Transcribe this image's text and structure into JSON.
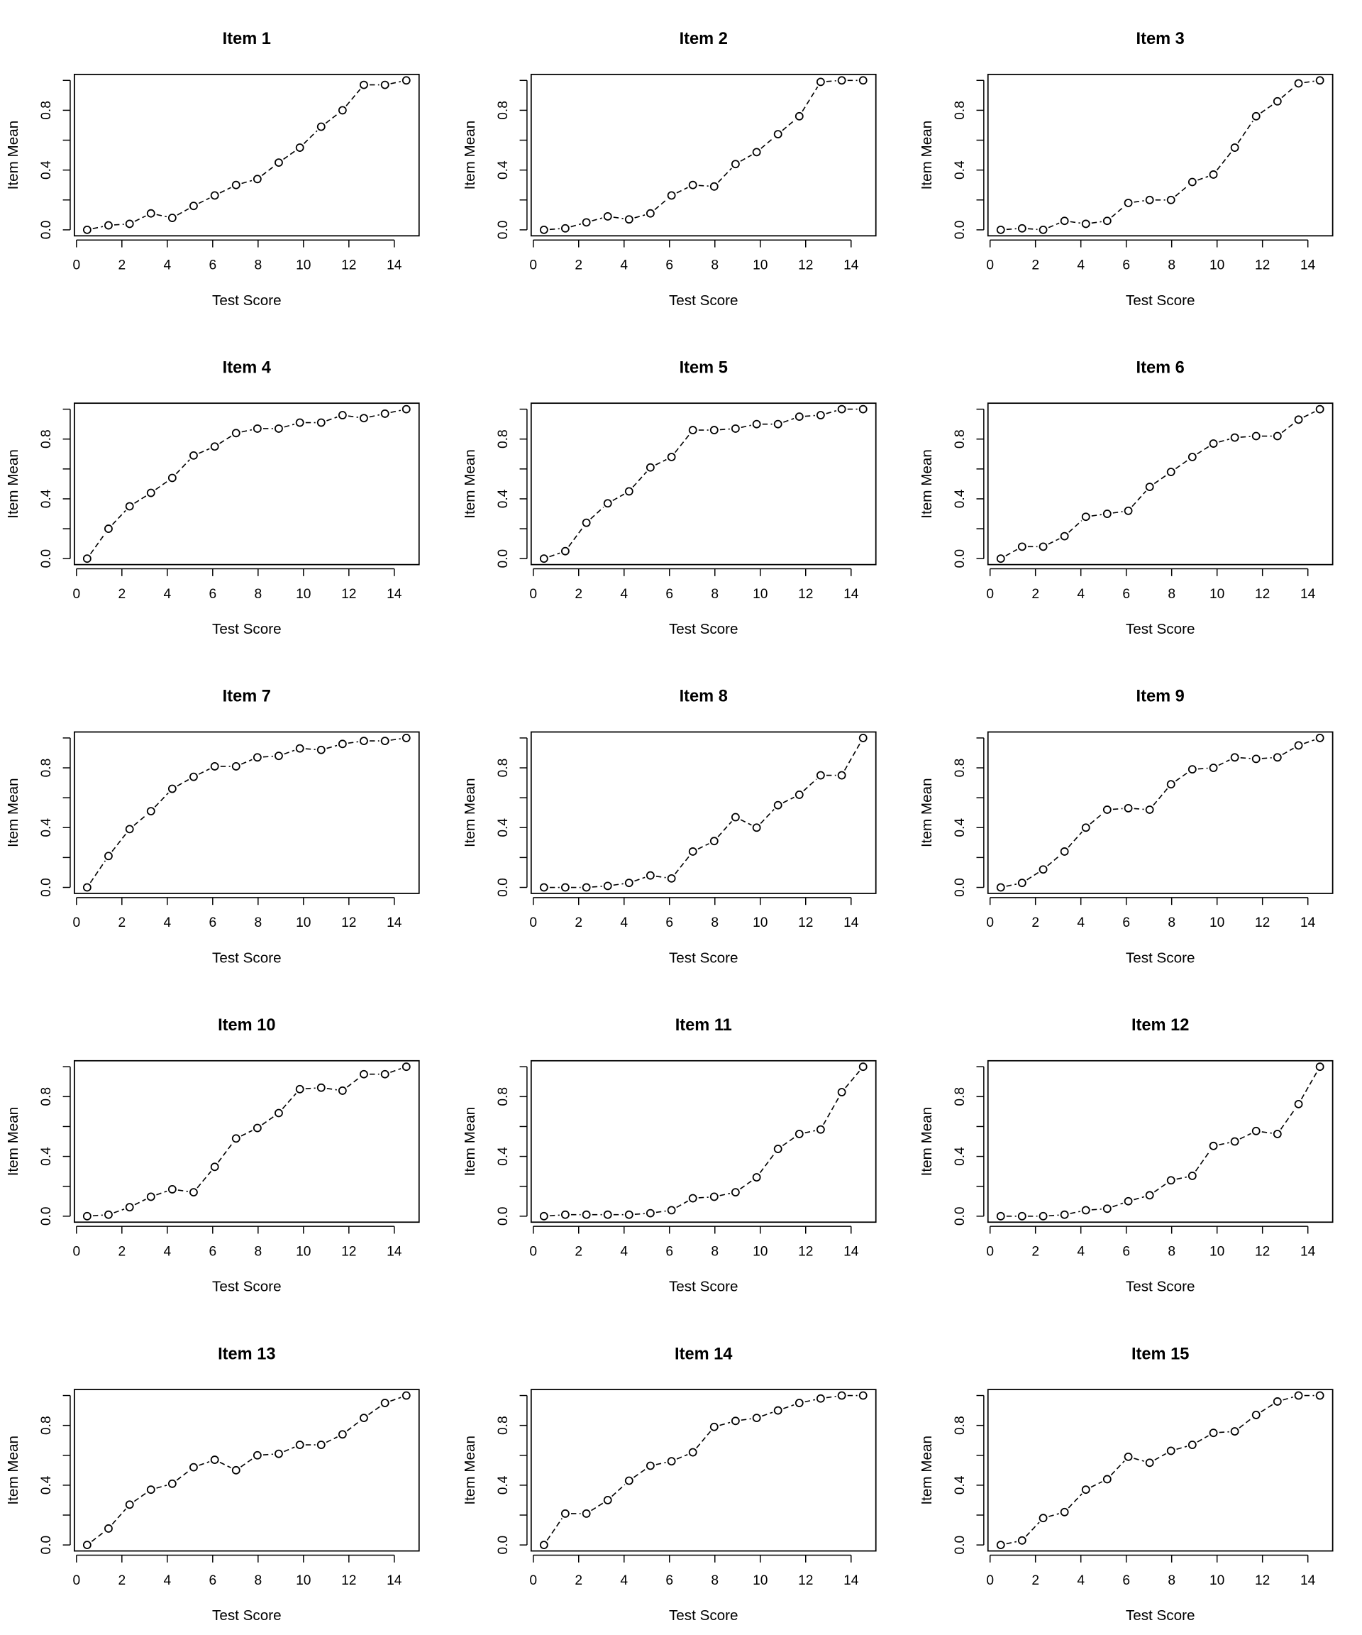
{
  "chart_data": [
    {
      "type": "line",
      "title": "Item 1",
      "xlabel": "Test Score",
      "ylabel": "Item Mean",
      "xlim": [
        0,
        15
      ],
      "ylim": [
        0,
        1
      ],
      "xticks": [
        "0",
        "2",
        "4",
        "6",
        "8",
        "10",
        "12",
        "14"
      ],
      "yticks": [
        "0.0",
        "0.4",
        "0.8"
      ],
      "x": [
        0.47,
        1.41,
        2.34,
        3.28,
        4.22,
        5.16,
        6.09,
        7.03,
        7.97,
        8.91,
        9.84,
        10.78,
        11.72,
        12.66,
        13.59,
        14.53
      ],
      "y": [
        0,
        0.03,
        0.04,
        0.11,
        0.08,
        0.16,
        0.23,
        0.3,
        0.34,
        0.45,
        0.55,
        0.69,
        0.8,
        0.97,
        0.97,
        1.0
      ]
    },
    {
      "type": "line",
      "title": "Item 2",
      "xlabel": "Test Score",
      "ylabel": "Item Mean",
      "xlim": [
        0,
        15
      ],
      "ylim": [
        0,
        1
      ],
      "xticks": [
        "0",
        "2",
        "4",
        "6",
        "8",
        "10",
        "12",
        "14"
      ],
      "yticks": [
        "0.0",
        "0.4",
        "0.8"
      ],
      "x": [
        0.47,
        1.41,
        2.34,
        3.28,
        4.22,
        5.16,
        6.09,
        7.03,
        7.97,
        8.91,
        9.84,
        10.78,
        11.72,
        12.66,
        13.59,
        14.53
      ],
      "y": [
        0,
        0.01,
        0.05,
        0.09,
        0.07,
        0.11,
        0.23,
        0.3,
        0.29,
        0.44,
        0.52,
        0.64,
        0.76,
        0.99,
        1.0,
        1.0
      ]
    },
    {
      "type": "line",
      "title": "Item 3",
      "xlabel": "Test Score",
      "ylabel": "Item Mean",
      "xlim": [
        0,
        15
      ],
      "ylim": [
        0,
        1
      ],
      "xticks": [
        "0",
        "2",
        "4",
        "6",
        "8",
        "10",
        "12",
        "14"
      ],
      "yticks": [
        "0.0",
        "0.4",
        "0.8"
      ],
      "x": [
        0.47,
        1.41,
        2.34,
        3.28,
        4.22,
        5.16,
        6.09,
        7.03,
        7.97,
        8.91,
        9.84,
        10.78,
        11.72,
        12.66,
        13.59,
        14.53
      ],
      "y": [
        0,
        0.01,
        0,
        0.06,
        0.04,
        0.06,
        0.18,
        0.2,
        0.2,
        0.32,
        0.37,
        0.55,
        0.76,
        0.86,
        0.98,
        1.0
      ]
    },
    {
      "type": "line",
      "title": "Item 4",
      "xlabel": "Test Score",
      "ylabel": "Item Mean",
      "xlim": [
        0,
        15
      ],
      "ylim": [
        0,
        1
      ],
      "xticks": [
        "0",
        "2",
        "4",
        "6",
        "8",
        "10",
        "12",
        "14"
      ],
      "yticks": [
        "0.0",
        "0.4",
        "0.8"
      ],
      "x": [
        0.47,
        1.41,
        2.34,
        3.28,
        4.22,
        5.16,
        6.09,
        7.03,
        7.97,
        8.91,
        9.84,
        10.78,
        11.72,
        12.66,
        13.59,
        14.53
      ],
      "y": [
        0,
        0.2,
        0.35,
        0.44,
        0.54,
        0.69,
        0.75,
        0.84,
        0.87,
        0.87,
        0.91,
        0.91,
        0.96,
        0.94,
        0.97,
        1.0
      ]
    },
    {
      "type": "line",
      "title": "Item 5",
      "xlabel": "Test Score",
      "ylabel": "Item Mean",
      "xlim": [
        0,
        15
      ],
      "ylim": [
        0,
        1
      ],
      "xticks": [
        "0",
        "2",
        "4",
        "6",
        "8",
        "10",
        "12",
        "14"
      ],
      "yticks": [
        "0.0",
        "0.4",
        "0.8"
      ],
      "x": [
        0.47,
        1.41,
        2.34,
        3.28,
        4.22,
        5.16,
        6.09,
        7.03,
        7.97,
        8.91,
        9.84,
        10.78,
        11.72,
        12.66,
        13.59,
        14.53
      ],
      "y": [
        0,
        0.05,
        0.24,
        0.37,
        0.45,
        0.61,
        0.68,
        0.86,
        0.86,
        0.87,
        0.9,
        0.9,
        0.95,
        0.96,
        1.0,
        1.0
      ]
    },
    {
      "type": "line",
      "title": "Item 6",
      "xlabel": "Test Score",
      "ylabel": "Item Mean",
      "xlim": [
        0,
        15
      ],
      "ylim": [
        0,
        1
      ],
      "xticks": [
        "0",
        "2",
        "4",
        "6",
        "8",
        "10",
        "12",
        "14"
      ],
      "yticks": [
        "0.0",
        "0.4",
        "0.8"
      ],
      "x": [
        0.47,
        1.41,
        2.34,
        3.28,
        4.22,
        5.16,
        6.09,
        7.03,
        7.97,
        8.91,
        9.84,
        10.78,
        11.72,
        12.66,
        13.59,
        14.53
      ],
      "y": [
        0,
        0.08,
        0.08,
        0.15,
        0.28,
        0.3,
        0.32,
        0.48,
        0.58,
        0.68,
        0.77,
        0.81,
        0.82,
        0.82,
        0.93,
        1.0
      ]
    },
    {
      "type": "line",
      "title": "Item 7",
      "xlabel": "Test Score",
      "ylabel": "Item Mean",
      "xlim": [
        0,
        15
      ],
      "ylim": [
        0,
        1
      ],
      "xticks": [
        "0",
        "2",
        "4",
        "6",
        "8",
        "10",
        "12",
        "14"
      ],
      "yticks": [
        "0.0",
        "0.4",
        "0.8"
      ],
      "x": [
        0.47,
        1.41,
        2.34,
        3.28,
        4.22,
        5.16,
        6.09,
        7.03,
        7.97,
        8.91,
        9.84,
        10.78,
        11.72,
        12.66,
        13.59,
        14.53
      ],
      "y": [
        0,
        0.21,
        0.39,
        0.51,
        0.66,
        0.74,
        0.81,
        0.81,
        0.87,
        0.88,
        0.93,
        0.92,
        0.96,
        0.98,
        0.98,
        1.0
      ]
    },
    {
      "type": "line",
      "title": "Item 8",
      "xlabel": "Test Score",
      "ylabel": "Item Mean",
      "xlim": [
        0,
        15
      ],
      "ylim": [
        0,
        1
      ],
      "xticks": [
        "0",
        "2",
        "4",
        "6",
        "8",
        "10",
        "12",
        "14"
      ],
      "yticks": [
        "0.0",
        "0.4",
        "0.8"
      ],
      "x": [
        0.47,
        1.41,
        2.34,
        3.28,
        4.22,
        5.16,
        6.09,
        7.03,
        7.97,
        8.91,
        9.84,
        10.78,
        11.72,
        12.66,
        13.59,
        14.53
      ],
      "y": [
        0,
        0,
        0,
        0.01,
        0.03,
        0.08,
        0.06,
        0.24,
        0.31,
        0.47,
        0.4,
        0.55,
        0.62,
        0.75,
        0.75,
        1.0
      ]
    },
    {
      "type": "line",
      "title": "Item 9",
      "xlabel": "Test Score",
      "ylabel": "Item Mean",
      "xlim": [
        0,
        15
      ],
      "ylim": [
        0,
        1
      ],
      "xticks": [
        "0",
        "2",
        "4",
        "6",
        "8",
        "10",
        "12",
        "14"
      ],
      "yticks": [
        "0.0",
        "0.4",
        "0.8"
      ],
      "x": [
        0.47,
        1.41,
        2.34,
        3.28,
        4.22,
        5.16,
        6.09,
        7.03,
        7.97,
        8.91,
        9.84,
        10.78,
        11.72,
        12.66,
        13.59,
        14.53
      ],
      "y": [
        0,
        0.03,
        0.12,
        0.24,
        0.4,
        0.52,
        0.53,
        0.52,
        0.69,
        0.79,
        0.8,
        0.87,
        0.86,
        0.87,
        0.95,
        1.0
      ]
    },
    {
      "type": "line",
      "title": "Item 10",
      "xlabel": "Test Score",
      "ylabel": "Item Mean",
      "xlim": [
        0,
        15
      ],
      "ylim": [
        0,
        1
      ],
      "xticks": [
        "0",
        "2",
        "4",
        "6",
        "8",
        "10",
        "12",
        "14"
      ],
      "yticks": [
        "0.0",
        "0.4",
        "0.8"
      ],
      "x": [
        0.47,
        1.41,
        2.34,
        3.28,
        4.22,
        5.16,
        6.09,
        7.03,
        7.97,
        8.91,
        9.84,
        10.78,
        11.72,
        12.66,
        13.59,
        14.53
      ],
      "y": [
        0,
        0.01,
        0.06,
        0.13,
        0.18,
        0.16,
        0.33,
        0.52,
        0.59,
        0.69,
        0.85,
        0.86,
        0.84,
        0.95,
        0.95,
        1.0
      ]
    },
    {
      "type": "line",
      "title": "Item 11",
      "xlabel": "Test Score",
      "ylabel": "Item Mean",
      "xlim": [
        0,
        15
      ],
      "ylim": [
        0,
        1
      ],
      "xticks": [
        "0",
        "2",
        "4",
        "6",
        "8",
        "10",
        "12",
        "14"
      ],
      "yticks": [
        "0.0",
        "0.4",
        "0.8"
      ],
      "x": [
        0.47,
        1.41,
        2.34,
        3.28,
        4.22,
        5.16,
        6.09,
        7.03,
        7.97,
        8.91,
        9.84,
        10.78,
        11.72,
        12.66,
        13.59,
        14.53
      ],
      "y": [
        0,
        0.01,
        0.01,
        0.01,
        0.01,
        0.02,
        0.04,
        0.12,
        0.13,
        0.16,
        0.26,
        0.45,
        0.55,
        0.58,
        0.83,
        1.0
      ]
    },
    {
      "type": "line",
      "title": "Item 12",
      "xlabel": "Test Score",
      "ylabel": "Item Mean",
      "xlim": [
        0,
        15
      ],
      "ylim": [
        0,
        1
      ],
      "xticks": [
        "0",
        "2",
        "4",
        "6",
        "8",
        "10",
        "12",
        "14"
      ],
      "yticks": [
        "0.0",
        "0.4",
        "0.8"
      ],
      "x": [
        0.47,
        1.41,
        2.34,
        3.28,
        4.22,
        5.16,
        6.09,
        7.03,
        7.97,
        8.91,
        9.84,
        10.78,
        11.72,
        12.66,
        13.59,
        14.53
      ],
      "y": [
        0,
        0,
        0,
        0.01,
        0.04,
        0.05,
        0.1,
        0.14,
        0.24,
        0.27,
        0.47,
        0.5,
        0.57,
        0.55,
        0.75,
        1.0
      ]
    },
    {
      "type": "line",
      "title": "Item 13",
      "xlabel": "Test Score",
      "ylabel": "Item Mean",
      "xlim": [
        0,
        15
      ],
      "ylim": [
        0,
        1
      ],
      "xticks": [
        "0",
        "2",
        "4",
        "6",
        "8",
        "10",
        "12",
        "14"
      ],
      "yticks": [
        "0.0",
        "0.4",
        "0.8"
      ],
      "x": [
        0.47,
        1.41,
        2.34,
        3.28,
        4.22,
        5.16,
        6.09,
        7.03,
        7.97,
        8.91,
        9.84,
        10.78,
        11.72,
        12.66,
        13.59,
        14.53
      ],
      "y": [
        0,
        0.11,
        0.27,
        0.37,
        0.41,
        0.52,
        0.57,
        0.5,
        0.6,
        0.61,
        0.67,
        0.67,
        0.74,
        0.85,
        0.95,
        1.0
      ]
    },
    {
      "type": "line",
      "title": "Item 14",
      "xlabel": "Test Score",
      "ylabel": "Item Mean",
      "xlim": [
        0,
        15
      ],
      "ylim": [
        0,
        1
      ],
      "xticks": [
        "0",
        "2",
        "4",
        "6",
        "8",
        "10",
        "12",
        "14"
      ],
      "yticks": [
        "0.0",
        "0.4",
        "0.8"
      ],
      "x": [
        0.47,
        1.41,
        2.34,
        3.28,
        4.22,
        5.16,
        6.09,
        7.03,
        7.97,
        8.91,
        9.84,
        10.78,
        11.72,
        12.66,
        13.59,
        14.53
      ],
      "y": [
        0,
        0.21,
        0.21,
        0.3,
        0.43,
        0.53,
        0.56,
        0.62,
        0.79,
        0.83,
        0.85,
        0.9,
        0.95,
        0.98,
        1.0,
        1.0
      ]
    },
    {
      "type": "line",
      "title": "Item 15",
      "xlabel": "Test Score",
      "ylabel": "Item Mean",
      "xlim": [
        0,
        15
      ],
      "ylim": [
        0,
        1
      ],
      "xticks": [
        "0",
        "2",
        "4",
        "6",
        "8",
        "10",
        "12",
        "14"
      ],
      "yticks": [
        "0.0",
        "0.4",
        "0.8"
      ],
      "x": [
        0.47,
        1.41,
        2.34,
        3.28,
        4.22,
        5.16,
        6.09,
        7.03,
        7.97,
        8.91,
        9.84,
        10.78,
        11.72,
        12.66,
        13.59,
        14.53
      ],
      "y": [
        0,
        0.03,
        0.18,
        0.22,
        0.37,
        0.44,
        0.59,
        0.55,
        0.63,
        0.67,
        0.75,
        0.76,
        0.87,
        0.96,
        1.0,
        1.0
      ]
    }
  ]
}
